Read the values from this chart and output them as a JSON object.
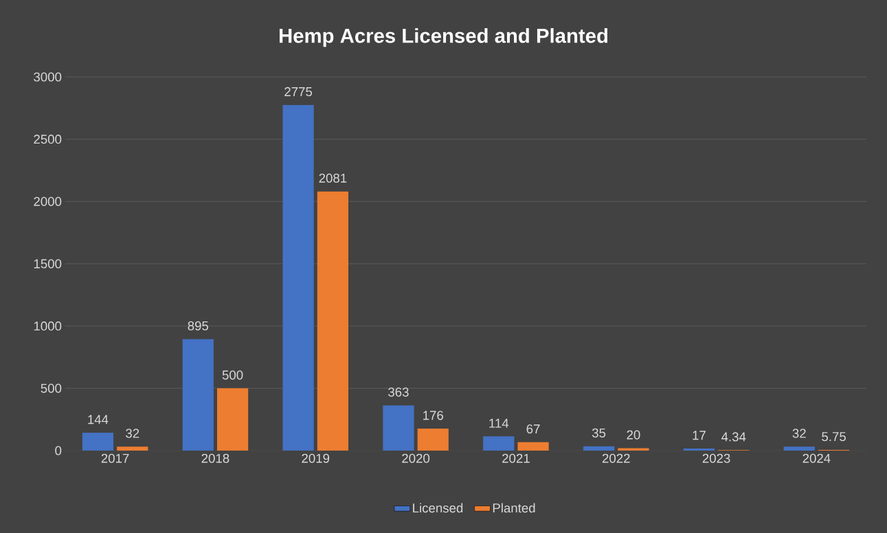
{
  "chart_data": {
    "type": "bar",
    "title": "Hemp Acres Licensed and Planted",
    "categories": [
      "2017",
      "2018",
      "2019",
      "2020",
      "2021",
      "2022",
      "2023",
      "2024"
    ],
    "series": [
      {
        "name": "Licensed",
        "color": "#4472c4",
        "values": [
          144,
          895,
          2775,
          363,
          114,
          35,
          17,
          32
        ]
      },
      {
        "name": "Planted",
        "color": "#ed7d31",
        "values": [
          32,
          500,
          2081,
          176,
          67,
          20,
          4.34,
          5.75
        ]
      }
    ],
    "ylim": [
      0,
      3000
    ],
    "yticks": [
      0,
      500,
      1000,
      1500,
      2000,
      2500,
      3000
    ],
    "grid": "y",
    "legend": "bottom",
    "data_labels": true
  }
}
